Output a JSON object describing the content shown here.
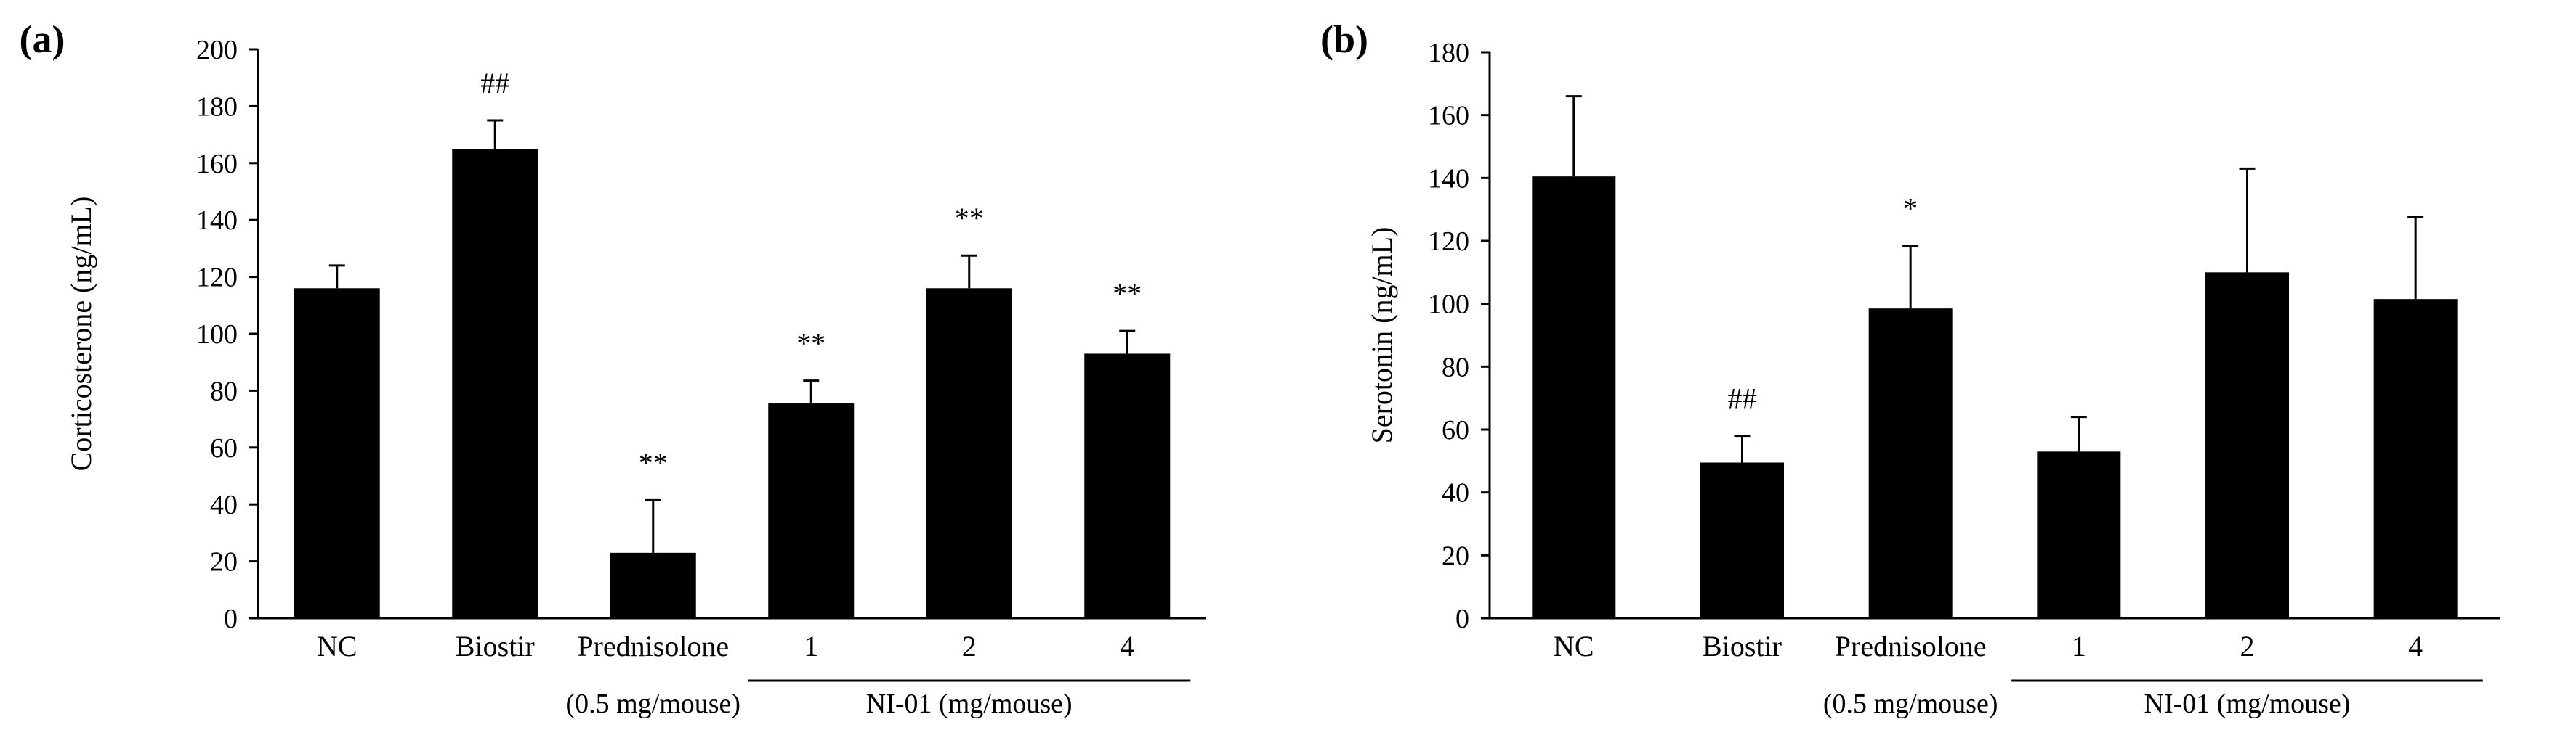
{
  "chart_data": [
    {
      "type": "bar",
      "panel_label": "(a)",
      "ylabel": "Corticosterone (ng/mL)",
      "ylim": [
        0,
        200
      ],
      "yticks": [
        "0",
        "20",
        "40",
        "60",
        "80",
        "100",
        "120",
        "140",
        "160",
        "180",
        "200"
      ],
      "categories": [
        "NC",
        "Biostir",
        "Prednisolone",
        "1",
        "2",
        "4"
      ],
      "values": [
        116,
        165,
        23,
        75.5,
        116,
        93
      ],
      "errors": [
        8,
        10,
        18.5,
        8,
        11.5,
        8
      ],
      "annotations": [
        "",
        "##",
        "**",
        "**",
        "**",
        "**"
      ],
      "group_labels": {
        "prednisolone_dose": "(0.5 mg/mouse)",
        "ni01": "NI-01 (mg/mouse)"
      },
      "bar_color": "#000000"
    },
    {
      "type": "bar",
      "panel_label": "(b)",
      "ylabel": "Serotonin (ng/mL)",
      "ylim": [
        0,
        180
      ],
      "yticks": [
        "0",
        "20",
        "40",
        "60",
        "80",
        "100",
        "120",
        "140",
        "160",
        "180"
      ],
      "categories": [
        "NC",
        "Biostir",
        "Prednisolone",
        "1",
        "2",
        "4"
      ],
      "values": [
        140.5,
        49.5,
        98.5,
        53,
        110,
        101.5
      ],
      "errors": [
        25.5,
        8.5,
        20,
        11,
        33,
        26
      ],
      "annotations": [
        "",
        "##",
        "*",
        "",
        "",
        ""
      ],
      "group_labels": {
        "prednisolone_dose": "(0.5 mg/mouse)",
        "ni01": "NI-01 (mg/mouse)"
      },
      "bar_color": "#000000"
    }
  ]
}
